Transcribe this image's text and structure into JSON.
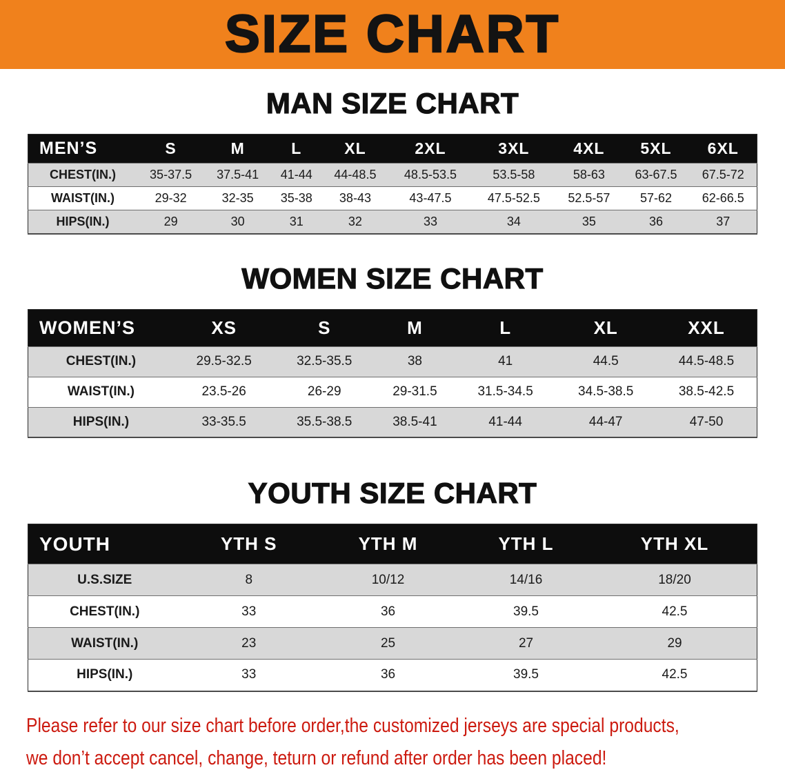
{
  "banner": {
    "title": "SIZE CHART",
    "bg_color": "#f0811c",
    "text_color": "#131313"
  },
  "sections": [
    {
      "heading": "MAN SIZE CHART",
      "table": {
        "header": [
          "MEN’S",
          "S",
          "M",
          "L",
          "XL",
          "2XL",
          "3XL",
          "4XL",
          "5XL",
          "6XL"
        ],
        "rows": [
          {
            "label": "CHEST(IN.)",
            "values": [
              "35-37.5",
              "37.5-41",
              "41-44",
              "44-48.5",
              "48.5-53.5",
              "53.5-58",
              "58-63",
              "63-67.5",
              "67.5-72"
            ]
          },
          {
            "label": "WAIST(IN.)",
            "values": [
              "29-32",
              "32-35",
              "35-38",
              "38-43",
              "43-47.5",
              "47.5-52.5",
              "52.5-57",
              "57-62",
              "62-66.5"
            ]
          },
          {
            "label": "HIPS(IN.)",
            "values": [
              "29",
              "30",
              "31",
              "32",
              "33",
              "34",
              "35",
              "36",
              "37"
            ]
          }
        ]
      }
    },
    {
      "heading": "WOMEN SIZE CHART",
      "table": {
        "header": [
          "WOMEN’S",
          "XS",
          "S",
          "M",
          "L",
          "XL",
          "XXL"
        ],
        "rows": [
          {
            "label": "CHEST(IN.)",
            "values": [
              "29.5-32.5",
              "32.5-35.5",
              "38",
              "41",
              "44.5",
              "44.5-48.5"
            ]
          },
          {
            "label": "WAIST(IN.)",
            "values": [
              "23.5-26",
              "26-29",
              "29-31.5",
              "31.5-34.5",
              "34.5-38.5",
              "38.5-42.5"
            ]
          },
          {
            "label": "HIPS(IN.)",
            "values": [
              "33-35.5",
              "35.5-38.5",
              "38.5-41",
              "41-44",
              "44-47",
              "47-50"
            ]
          }
        ]
      }
    },
    {
      "heading": "YOUTH SIZE CHART",
      "table": {
        "header": [
          "YOUTH",
          "YTH S",
          "YTH M",
          "YTH L",
          "YTH XL"
        ],
        "rows": [
          {
            "label": "U.S.SIZE",
            "values": [
              "8",
              "10/12",
              "14/16",
              "18/20"
            ]
          },
          {
            "label": "CHEST(IN.)",
            "values": [
              "33",
              "36",
              "39.5",
              "42.5"
            ]
          },
          {
            "label": "WAIST(IN.)",
            "values": [
              "23",
              "25",
              "27",
              "29"
            ]
          },
          {
            "label": "HIPS(IN.)",
            "values": [
              "33",
              "36",
              "39.5",
              "42.5"
            ]
          }
        ]
      }
    }
  ],
  "disclaimer": {
    "line1": "Please refer to our size chart before order,the customized jerseys are special products,",
    "line2": "we don’t accept cancel, change, teturn or refund after order has been placed!",
    "color": "#cc1a0f"
  },
  "colors": {
    "header_row_bg": "#0d0d0d",
    "stripe_row_bg": "#d8d8d8"
  }
}
